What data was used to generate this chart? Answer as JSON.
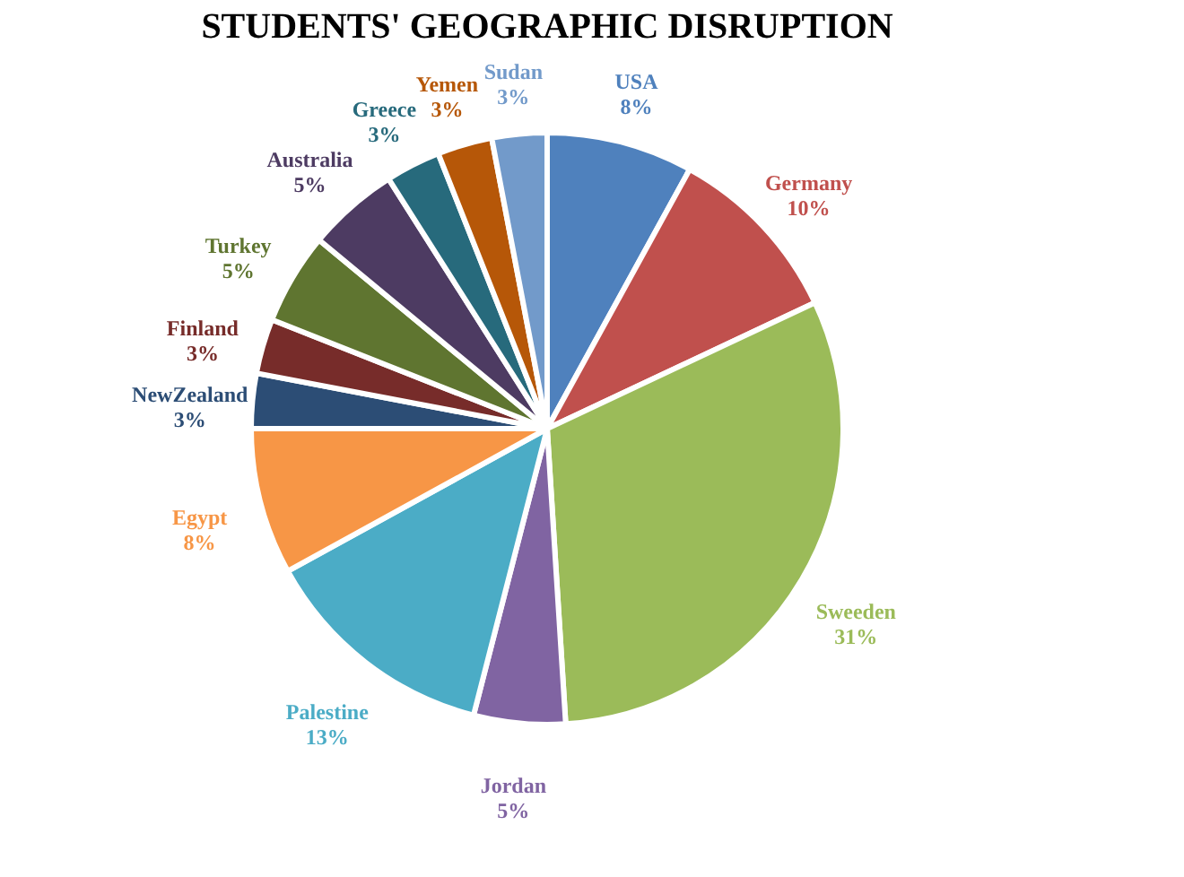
{
  "chart_data": {
    "type": "pie",
    "title": "STUDENTS' GEOGRAPHIC DISRUPTION",
    "categories": [
      "USA",
      "Germany",
      "Sweeden",
      "Jordan",
      "Palestine",
      "Egypt",
      "NewZealand",
      "Finland",
      "Turkey",
      "Australia",
      "Greece",
      "Yemen",
      "Sudan"
    ],
    "values": [
      8,
      10,
      31,
      5,
      13,
      8,
      3,
      3,
      5,
      5,
      3,
      3,
      3
    ],
    "value_labels": [
      "8%",
      "10%",
      "31%",
      "5%",
      "13%",
      "8%",
      "3%",
      "3%",
      "5%",
      "5%",
      "3%",
      "3%",
      "3%"
    ],
    "colors": [
      "#4f81bd",
      "#c0504d",
      "#9bbb59",
      "#8064a2",
      "#4bacc6",
      "#f79646",
      "#2c4d75",
      "#772c2a",
      "#5f7530",
      "#4d3b62",
      "#276a7c",
      "#b65708",
      "#729aca"
    ],
    "legend": false
  }
}
